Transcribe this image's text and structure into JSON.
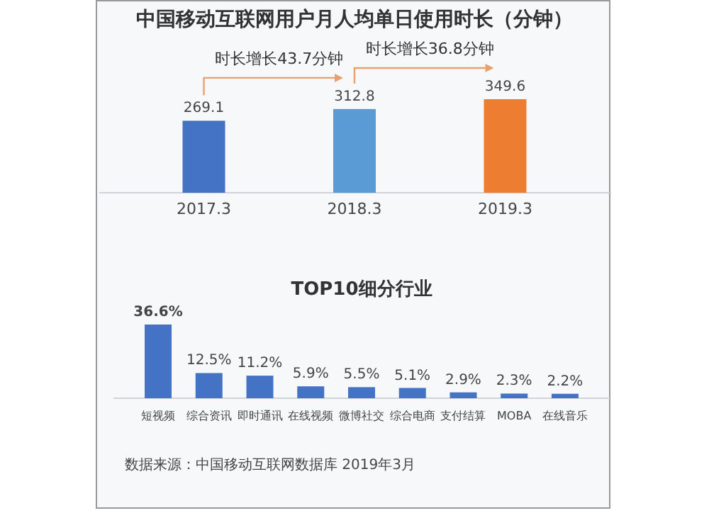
{
  "chart_data": [
    {
      "type": "bar",
      "title": "中国移动互联网用户月人均单日使用时长（分钟）",
      "categories": [
        "2017.3",
        "2018.3",
        "2019.3"
      ],
      "values": [
        269.1,
        312.8,
        349.6
      ],
      "colors": [
        "#4472c4",
        "#5b9bd5",
        "#ed7d31"
      ],
      "data_labels": true,
      "annotations": [
        "时长增长43.7分钟",
        "时长增长36.8分钟"
      ]
    },
    {
      "type": "bar",
      "title": "TOP10细分行业",
      "categories": [
        "短视频",
        "综合资讯",
        "即时通讯",
        "在线视频",
        "微博社交",
        "综合电商",
        "支付结算",
        "MOBA",
        "在线音乐"
      ],
      "values": [
        36.6,
        12.5,
        11.2,
        5.9,
        5.5,
        5.1,
        2.9,
        2.3,
        2.2
      ],
      "color": "#4472c4",
      "value_labels": [
        "36.6%",
        "12.5%",
        "11.2%",
        "5.9%",
        "5.5%",
        "5.1%",
        "2.9%",
        "2.3%",
        "2.2%"
      ],
      "annotations": [
        "数据来源：中国移动互联网数据库 2019年3月"
      ]
    }
  ]
}
